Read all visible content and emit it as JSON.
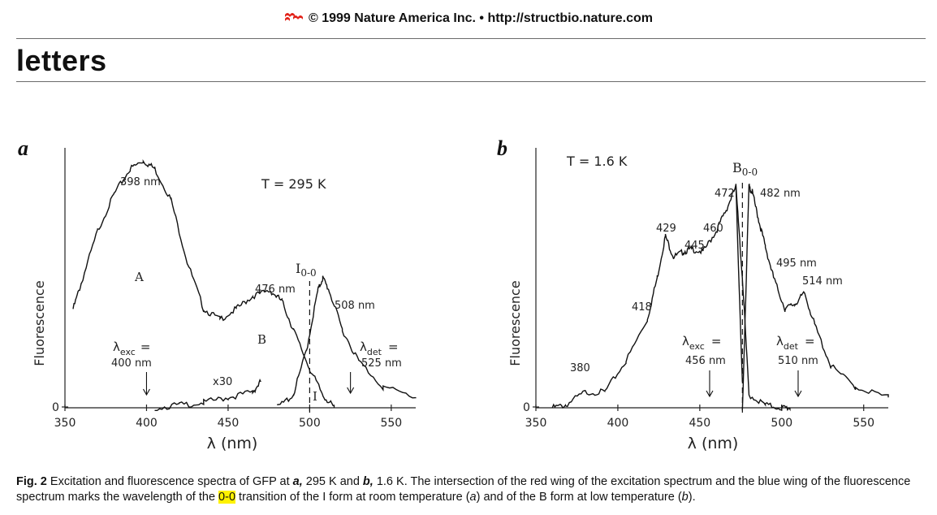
{
  "header": {
    "copyright": "© 1999 Nature America Inc. • http://structbio.nature.com",
    "logo_icon": "nature-logo-icon",
    "logo_color": "#e2231a"
  },
  "section_title": "letters",
  "figure": {
    "panel_a": {
      "letter": "a",
      "ylabel": "Fluorescence",
      "xlabel": "λ (nm)",
      "temp_label": "T = 295 K",
      "zero_label": "0",
      "peak_398": "398 nm",
      "peak_476": "476 nm",
      "peak_508": "508 nm",
      "label_A": "A",
      "label_B": "B",
      "label_I": "I",
      "label_x30": "x30",
      "io_label": "I",
      "io_sub": "0-0",
      "exc_lambda": "λ",
      "exc_sub": "exc",
      "exc_eq": "=",
      "exc_value": "400 nm",
      "det_lambda": "λ",
      "det_sub": "det",
      "det_eq": "=",
      "det_value": "525 nm"
    },
    "panel_b": {
      "letter": "b",
      "ylabel": "Fluorescence",
      "xlabel": "λ (nm)",
      "temp_label": "T = 1.6 K",
      "zero_label": "0",
      "peak_380": "380",
      "peak_418": "418",
      "peak_429": "429",
      "peak_445": "445",
      "peak_460": "460",
      "peak_472": "472",
      "peak_482": "482 nm",
      "peak_495": "495 nm",
      "peak_514": "514 nm",
      "bo_label": "B",
      "bo_sub": "0-0",
      "exc_lambda": "λ",
      "exc_sub": "exc",
      "exc_eq": "=",
      "exc_value": "456 nm",
      "det_lambda": "λ",
      "det_sub": "det",
      "det_eq": "=",
      "det_value": "510 nm"
    }
  },
  "chart_data": [
    {
      "type": "line",
      "panel": "a",
      "xlabel": "λ (nm)",
      "ylabel": "Fluorescence",
      "xlim": [
        350,
        565
      ],
      "xticks": [
        350,
        400,
        450,
        500,
        550
      ],
      "ylim": [
        0,
        1
      ],
      "y_tick_labels": [
        "0"
      ],
      "annotations": [
        "T = 295 K",
        "398 nm",
        "476 nm",
        "508 nm",
        "A",
        "B",
        "I",
        "x30",
        "I 0-0",
        "λexc = 400 nm",
        "λdet = 525 nm"
      ],
      "series": [
        {
          "x": [
            355,
            360,
            370,
            380,
            390,
            398,
            405,
            415,
            425,
            435,
            445,
            455,
            465,
            476,
            483,
            490,
            500,
            508,
            515
          ],
          "y": [
            0.38,
            0.48,
            0.68,
            0.82,
            0.92,
            0.95,
            0.92,
            0.8,
            0.56,
            0.38,
            0.34,
            0.38,
            0.43,
            0.45,
            0.41,
            0.3,
            0.15,
            0.05,
            0.0
          ]
        },
        {
          "x": [
            405,
            420,
            435,
            450,
            465,
            470
          ],
          "y": [
            0.0,
            0.01,
            0.02,
            0.04,
            0.06,
            0.1
          ]
        },
        {
          "x": [
            480,
            490,
            498,
            505,
            508,
            512,
            520,
            530,
            545,
            565
          ],
          "y": [
            0.0,
            0.05,
            0.22,
            0.45,
            0.5,
            0.45,
            0.3,
            0.18,
            0.08,
            0.04
          ]
        }
      ]
    },
    {
      "type": "line",
      "panel": "b",
      "xlabel": "λ (nm)",
      "ylabel": "Fluorescence",
      "xlim": [
        350,
        565
      ],
      "xticks": [
        350,
        400,
        450,
        500,
        550
      ],
      "ylim": [
        0,
        1
      ],
      "y_tick_labels": [
        "0"
      ],
      "annotations": [
        "T = 1.6 K",
        "B 0-0",
        "380",
        "418",
        "429",
        "445",
        "460",
        "472",
        "482 nm",
        "495 nm",
        "514 nm",
        "λexc = 456 nm",
        "λdet = 510 nm"
      ],
      "series": [
        {
          "x": [
            360,
            368,
            380,
            392,
            405,
            418,
            424,
            429,
            434,
            440,
            445,
            452,
            460,
            466,
            472,
            476
          ],
          "y": [
            0.0,
            0.01,
            0.06,
            0.06,
            0.18,
            0.34,
            0.5,
            0.66,
            0.58,
            0.6,
            0.61,
            0.6,
            0.68,
            0.76,
            0.85,
            0.1
          ]
        },
        {
          "x": [
            476,
            480,
            482,
            486,
            490,
            495,
            502,
            508,
            514,
            520,
            530,
            545,
            565
          ],
          "y": [
            0.0,
            0.85,
            0.83,
            0.72,
            0.62,
            0.5,
            0.38,
            0.4,
            0.44,
            0.32,
            0.16,
            0.08,
            0.04
          ]
        },
        {
          "x": [
            472,
            476,
            480,
            490,
            500,
            505
          ],
          "y": [
            0.85,
            0.5,
            0.05,
            0.01,
            0.0,
            0.0
          ]
        }
      ]
    }
  ],
  "caption": {
    "p1": "Fig. 2",
    "p2": " Excitation and fluorescence spectra of GFP at ",
    "p3": "a,",
    "p4": " 295 K and ",
    "p5": "b,",
    "p6": " 1.6 K. The intersection of the red wing of the excitation spectrum and the blue wing of the fluorescence spectrum marks the wavelength of the ",
    "p7": "0-0",
    "p8": " transition of the I form at room temperature (",
    "p9": "a",
    "p10": ") and of the B form at low temperature (",
    "p11": "b",
    "p12": ")."
  }
}
